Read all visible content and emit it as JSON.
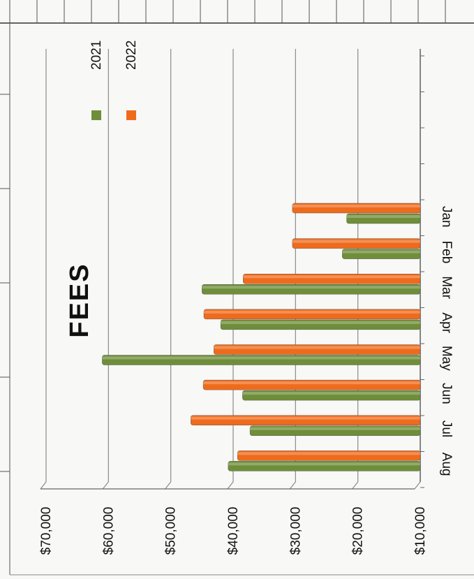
{
  "chart_data": {
    "type": "bar",
    "orientation": "rotated-90",
    "title": "FEES",
    "categories": [
      "Jan",
      "Feb",
      "Mar",
      "Apr",
      "May",
      "Jun",
      "Jul",
      "Aug"
    ],
    "series": [
      {
        "name": "2021",
        "color": "#6f8e3a",
        "values": [
          21800,
          22500,
          45000,
          42000,
          61000,
          38500,
          37300,
          40800
        ]
      },
      {
        "name": "2022",
        "color": "#ef6b1c",
        "values": [
          30500,
          30500,
          38400,
          44700,
          43100,
          44800,
          46800,
          39300
        ]
      }
    ],
    "y_ticks": [
      "$10,000",
      "$20,000",
      "$30,000",
      "$40,000",
      "$50,000",
      "$60,000",
      "$70,000"
    ],
    "ylim": [
      10000,
      70000
    ],
    "grid": true,
    "legend_position": "top-right"
  }
}
